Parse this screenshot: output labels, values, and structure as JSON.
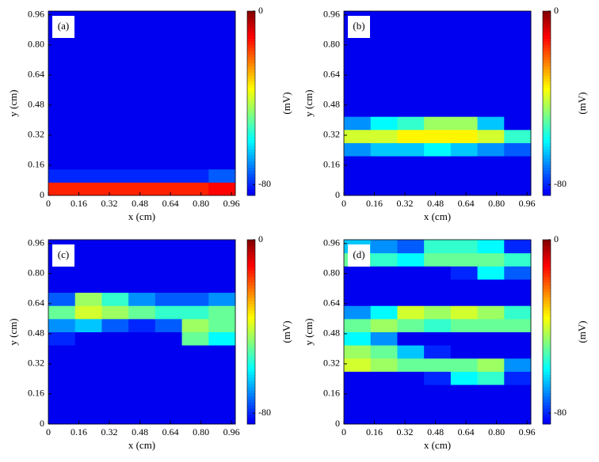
{
  "chart_data": [
    {
      "type": "heatmap",
      "label": "(a)",
      "xlabel": "x (cm)",
      "ylabel": "y (cm)",
      "colorbar_label": "(mV)",
      "colormap": "jet",
      "xlim": [
        0,
        0.98
      ],
      "ylim": [
        0,
        0.98
      ],
      "xticks": [
        0,
        0.16,
        0.32,
        0.48,
        0.64,
        {
          "value": 0.8,
          "label": "0.80"
        },
        0.96
      ],
      "yticks": [
        0,
        0.16,
        0.32,
        0.48,
        0.64,
        {
          "value": 0.8,
          "label": "0.80"
        },
        0.96
      ],
      "x_edges": [
        0,
        0.14,
        0.28,
        0.42,
        0.56,
        0.7,
        0.84,
        0.98
      ],
      "y_edges": [
        0,
        0.07,
        0.14,
        0.21,
        0.28,
        0.35,
        0.42,
        0.49,
        0.56,
        0.63,
        0.7,
        0.77,
        0.84,
        0.91,
        0.98
      ],
      "clim": [
        -85,
        0
      ],
      "cticks": [
        -80,
        0
      ],
      "z": [
        [
          -15,
          -15,
          -15,
          -15,
          -15,
          -15,
          -12
        ],
        [
          -80,
          -80,
          -80,
          -80,
          -80,
          -80,
          -75
        ],
        [
          -85,
          -85,
          -85,
          -85,
          -85,
          -85,
          -85
        ],
        [
          -85,
          -85,
          -85,
          -85,
          -85,
          -85,
          -85
        ],
        [
          -85,
          -85,
          -85,
          -85,
          -85,
          -85,
          -85
        ],
        [
          -85,
          -85,
          -85,
          -85,
          -85,
          -85,
          -85
        ],
        [
          -85,
          -85,
          -85,
          -85,
          -85,
          -85,
          -85
        ],
        [
          -85,
          -85,
          -85,
          -85,
          -85,
          -85,
          -85
        ],
        [
          -85,
          -85,
          -85,
          -85,
          -85,
          -85,
          -85
        ],
        [
          -85,
          -85,
          -85,
          -85,
          -85,
          -85,
          -85
        ],
        [
          -85,
          -85,
          -85,
          -85,
          -85,
          -85,
          -85
        ],
        [
          -85,
          -85,
          -85,
          -85,
          -85,
          -85,
          -85
        ],
        [
          -85,
          -85,
          -85,
          -85,
          -85,
          -85,
          -85
        ],
        [
          -85,
          -85,
          -85,
          -85,
          -85,
          -85,
          -85
        ]
      ]
    },
    {
      "type": "heatmap",
      "label": "(b)",
      "xlabel": "x (cm)",
      "ylabel": "y (cm)",
      "colorbar_label": "(mV)",
      "colormap": "jet",
      "xlim": [
        0,
        0.98
      ],
      "ylim": [
        0,
        0.98
      ],
      "xticks": [
        0,
        0.16,
        0.32,
        0.48,
        0.64,
        {
          "value": 0.8,
          "label": "0.80"
        },
        0.96
      ],
      "yticks": [
        0,
        0.16,
        0.32,
        0.48,
        0.64,
        {
          "value": 0.8,
          "label": "0.80"
        },
        0.96
      ],
      "x_edges": [
        0,
        0.14,
        0.28,
        0.42,
        0.56,
        0.7,
        0.84,
        0.98
      ],
      "y_edges": [
        0,
        0.07,
        0.14,
        0.21,
        0.28,
        0.35,
        0.42,
        0.49,
        0.56,
        0.63,
        0.7,
        0.77,
        0.84,
        0.91,
        0.98
      ],
      "clim": [
        -85,
        0
      ],
      "cticks": [
        -80,
        0
      ],
      "z": [
        [
          -85,
          -85,
          -85,
          -85,
          -85,
          -85,
          -85
        ],
        [
          -85,
          -85,
          -85,
          -85,
          -85,
          -85,
          -85
        ],
        [
          -85,
          -85,
          -85,
          -85,
          -85,
          -85,
          -85
        ],
        [
          -70,
          -65,
          -65,
          -60,
          -65,
          -70,
          -75
        ],
        [
          -40,
          -40,
          -35,
          -35,
          -35,
          -40,
          -55
        ],
        [
          -70,
          -60,
          -55,
          -45,
          -45,
          -65,
          -85
        ],
        [
          -85,
          -85,
          -85,
          -85,
          -85,
          -85,
          -85
        ],
        [
          -85,
          -85,
          -85,
          -85,
          -85,
          -85,
          -85
        ],
        [
          -85,
          -85,
          -85,
          -85,
          -85,
          -85,
          -85
        ],
        [
          -85,
          -85,
          -85,
          -85,
          -85,
          -85,
          -85
        ],
        [
          -85,
          -85,
          -85,
          -85,
          -85,
          -85,
          -85
        ],
        [
          -85,
          -85,
          -85,
          -85,
          -85,
          -85,
          -85
        ],
        [
          -85,
          -85,
          -85,
          -85,
          -85,
          -85,
          -85
        ],
        [
          -85,
          -85,
          -85,
          -85,
          -85,
          -85,
          -85
        ]
      ]
    },
    {
      "type": "heatmap",
      "label": "(c)",
      "xlabel": "x (cm)",
      "ylabel": "y (cm)",
      "colorbar_label": "(mV)",
      "colormap": "jet",
      "xlim": [
        0,
        0.98
      ],
      "ylim": [
        0,
        0.98
      ],
      "xticks": [
        0,
        0.16,
        0.32,
        0.48,
        0.64,
        {
          "value": 0.8,
          "label": "0.80"
        },
        0.96
      ],
      "yticks": [
        0,
        0.16,
        0.32,
        0.48,
        0.64,
        {
          "value": 0.8,
          "label": "0.80"
        },
        0.96
      ],
      "x_edges": [
        0,
        0.14,
        0.28,
        0.42,
        0.56,
        0.7,
        0.84,
        0.98
      ],
      "y_edges": [
        0,
        0.07,
        0.14,
        0.21,
        0.28,
        0.35,
        0.42,
        0.49,
        0.56,
        0.63,
        0.7,
        0.77,
        0.84,
        0.91,
        0.98
      ],
      "clim": [
        -85,
        0
      ],
      "cticks": [
        -80,
        0
      ],
      "z": [
        [
          -85,
          -85,
          -85,
          -85,
          -85,
          -85,
          -85
        ],
        [
          -85,
          -85,
          -85,
          -85,
          -85,
          -85,
          -85
        ],
        [
          -85,
          -85,
          -85,
          -85,
          -85,
          -85,
          -85
        ],
        [
          -85,
          -85,
          -85,
          -85,
          -85,
          -85,
          -85
        ],
        [
          -85,
          -85,
          -85,
          -85,
          -85,
          -85,
          -85
        ],
        [
          -85,
          -85,
          -85,
          -85,
          -85,
          -85,
          -85
        ],
        [
          -80,
          -85,
          -85,
          -85,
          -85,
          -50,
          -60
        ],
        [
          -70,
          -65,
          -75,
          -80,
          -75,
          -45,
          -50
        ],
        [
          -50,
          -40,
          -45,
          -50,
          -55,
          -55,
          -50
        ],
        [
          -75,
          -45,
          -55,
          -70,
          -75,
          -75,
          -70
        ],
        [
          -85,
          -85,
          -85,
          -85,
          -85,
          -85,
          -85
        ],
        [
          -85,
          -85,
          -85,
          -85,
          -85,
          -85,
          -85
        ],
        [
          -85,
          -85,
          -85,
          -85,
          -85,
          -85,
          -85
        ],
        [
          -85,
          -85,
          -85,
          -85,
          -85,
          -85,
          -85
        ]
      ]
    },
    {
      "type": "heatmap",
      "label": "(d)",
      "xlabel": "x (cm)",
      "ylabel": "y (cm)",
      "colorbar_label": "(mV)",
      "colormap": "jet",
      "xlim": [
        0,
        0.98
      ],
      "ylim": [
        0,
        0.98
      ],
      "xticks": [
        0,
        0.16,
        0.32,
        0.48,
        0.64,
        {
          "value": 0.8,
          "label": "0.80"
        },
        0.96
      ],
      "yticks": [
        0,
        0.16,
        0.32,
        0.48,
        0.64,
        {
          "value": 0.8,
          "label": "0.80"
        },
        0.96
      ],
      "x_edges": [
        0,
        0.14,
        0.28,
        0.42,
        0.56,
        0.7,
        0.84,
        0.98
      ],
      "y_edges": [
        0,
        0.07,
        0.14,
        0.21,
        0.28,
        0.35,
        0.42,
        0.49,
        0.56,
        0.63,
        0.7,
        0.77,
        0.84,
        0.91,
        0.98
      ],
      "clim": [
        -85,
        0
      ],
      "cticks": [
        -80,
        0
      ],
      "z": [
        [
          -85,
          -85,
          -85,
          -85,
          -85,
          -85,
          -85
        ],
        [
          -85,
          -85,
          -85,
          -85,
          -85,
          -85,
          -85
        ],
        [
          -85,
          -85,
          -85,
          -85,
          -85,
          -85,
          -85
        ],
        [
          -85,
          -85,
          -85,
          -80,
          -60,
          -55,
          -80
        ],
        [
          -40,
          -45,
          -50,
          -50,
          -50,
          -45,
          -70
        ],
        [
          -45,
          -50,
          -65,
          -80,
          -85,
          -85,
          -85
        ],
        [
          -60,
          -70,
          -85,
          -85,
          -85,
          -85,
          -85
        ],
        [
          -50,
          -45,
          -50,
          -55,
          -50,
          -50,
          -50
        ],
        [
          -70,
          -60,
          -40,
          -45,
          -40,
          -45,
          -55
        ],
        [
          -85,
          -85,
          -85,
          -85,
          -85,
          -85,
          -85
        ],
        [
          -85,
          -85,
          -85,
          -85,
          -85,
          -85,
          -85
        ],
        [
          -85,
          -85,
          -85,
          -85,
          -80,
          -60,
          -75
        ],
        [
          -50,
          -55,
          -60,
          -50,
          -50,
          -50,
          -55
        ],
        [
          -65,
          -70,
          -75,
          -55,
          -55,
          -60,
          -80
        ]
      ]
    }
  ]
}
